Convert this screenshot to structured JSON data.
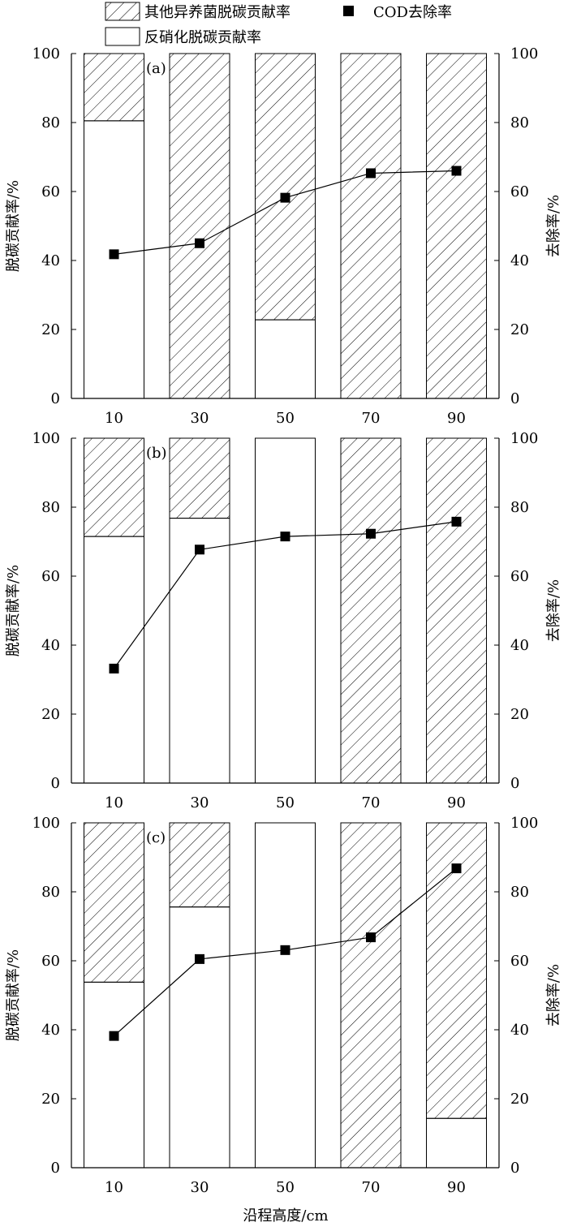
{
  "legend": {
    "hatched_label": "其他异养菌脱碳贡献率",
    "square_label": "COD去除率",
    "white_label": "反硝化脱碳贡献率"
  },
  "y_left_label": "脱碳贡献率/%",
  "y_right_label": "去除率/%",
  "x_label": "沿程高度/cm",
  "panel_labels": [
    "(a)",
    "(b)",
    "(c)"
  ],
  "chart_data": [
    {
      "type": "bar",
      "panel": "(a)",
      "categories": [
        "10",
        "30",
        "50",
        "70",
        "90"
      ],
      "series": [
        {
          "name": "反硝化脱碳贡献率",
          "values": [
            80.5,
            0,
            22.8,
            0,
            0
          ]
        },
        {
          "name": "其他异养菌脱碳贡献率",
          "values": [
            19.5,
            100,
            77.2,
            100,
            100
          ]
        },
        {
          "name": "COD去除率",
          "values": [
            41.8,
            45.0,
            58.2,
            65.3,
            66.0
          ]
        }
      ],
      "ylim": [
        0,
        100
      ],
      "yticks": [
        0,
        20,
        40,
        60,
        80,
        100
      ]
    },
    {
      "type": "bar",
      "panel": "(b)",
      "categories": [
        "10",
        "30",
        "50",
        "70",
        "90"
      ],
      "series": [
        {
          "name": "反硝化脱碳贡献率",
          "values": [
            71.5,
            76.8,
            100,
            0,
            0
          ]
        },
        {
          "name": "其他异养菌脱碳贡献率",
          "values": [
            28.5,
            23.2,
            0,
            100,
            100
          ]
        },
        {
          "name": "COD去除率",
          "values": [
            33.2,
            67.7,
            71.5,
            72.3,
            75.8
          ]
        }
      ],
      "ylim": [
        0,
        100
      ],
      "yticks": [
        0,
        20,
        40,
        60,
        80,
        100
      ]
    },
    {
      "type": "bar",
      "panel": "(c)",
      "categories": [
        "10",
        "30",
        "50",
        "70",
        "90"
      ],
      "series": [
        {
          "name": "反硝化脱碳贡献率",
          "values": [
            53.8,
            75.6,
            100,
            0,
            14.3
          ]
        },
        {
          "name": "其他异养菌脱碳贡献率",
          "values": [
            46.2,
            24.4,
            0,
            100,
            85.7
          ]
        },
        {
          "name": "COD去除率",
          "values": [
            38.2,
            60.5,
            63.1,
            66.8,
            86.8
          ]
        }
      ],
      "ylim": [
        0,
        100
      ],
      "yticks": [
        0,
        20,
        40,
        60,
        80,
        100
      ]
    }
  ]
}
